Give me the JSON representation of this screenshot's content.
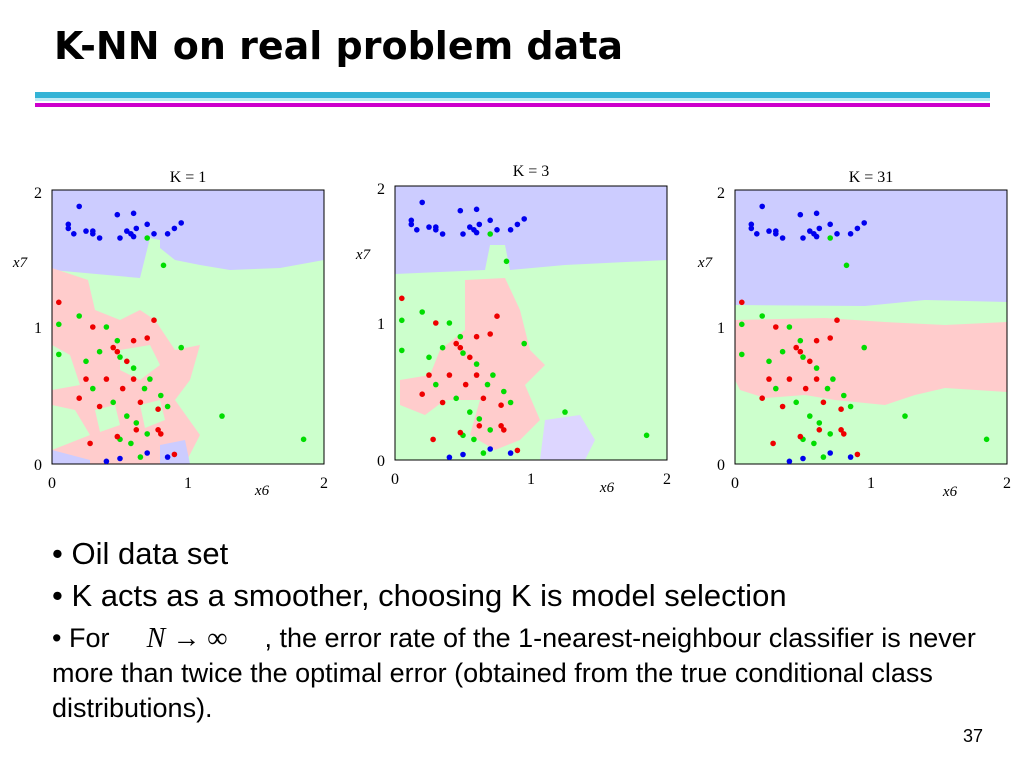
{
  "slide": {
    "title": "K-NN on real problem data",
    "page_number": "37",
    "bullets": {
      "b1": "• Oil data set",
      "b2": "• K acts as a smoother, choosing K is model selection",
      "b3_prefix": "•  For ",
      "b3_math": "N → ∞",
      "b3_suffix": " , the error rate of the 1-nearest-neighbour classifier is never more than twice the optimal error (obtained from the true conditional class distributions)."
    },
    "colors": {
      "rule_cyan": "#33b3d6",
      "rule_magenta": "#cc00cc",
      "region_blue": "#ccccff",
      "region_green": "#ccffcc",
      "region_red": "#ffcccc",
      "point_blue": "#0000ee",
      "point_green": "#00dd00",
      "point_red": "#ee0000"
    }
  },
  "chart_data": [
    {
      "type": "scatter",
      "title": "K = 1",
      "xlabel": "x6",
      "ylabel": "x7",
      "xlim": [
        0,
        2
      ],
      "ylim": [
        0,
        2
      ],
      "xticks": [
        "0",
        "1",
        "2"
      ],
      "yticks": [
        "0",
        "1",
        "2"
      ],
      "series": [
        {
          "color": "blue",
          "points": [
            [
              0.12,
              1.72
            ],
            [
              0.2,
              1.88
            ],
            [
              0.16,
              1.68
            ],
            [
              0.25,
              1.7
            ],
            [
              0.3,
              1.7
            ],
            [
              0.35,
              1.65
            ],
            [
              0.48,
              1.82
            ],
            [
              0.5,
              1.65
            ],
            [
              0.55,
              1.7
            ],
            [
              0.58,
              1.68
            ],
            [
              0.6,
              1.83
            ],
            [
              0.62,
              1.72
            ],
            [
              0.7,
              1.75
            ],
            [
              0.75,
              1.68
            ],
            [
              0.85,
              1.68
            ],
            [
              0.9,
              1.72
            ],
            [
              0.95,
              1.76
            ],
            [
              0.4,
              0.02
            ],
            [
              0.5,
              0.04
            ],
            [
              0.7,
              0.08
            ],
            [
              0.85,
              0.05
            ],
            [
              0.3,
              1.68
            ],
            [
              0.12,
              1.75
            ],
            [
              0.6,
              1.66
            ]
          ]
        },
        {
          "color": "green",
          "points": [
            [
              0.7,
              1.65
            ],
            [
              0.82,
              1.45
            ],
            [
              0.05,
              1.02
            ],
            [
              0.2,
              1.08
            ],
            [
              0.4,
              1.0
            ],
            [
              0.48,
              0.9
            ],
            [
              0.05,
              0.8
            ],
            [
              0.35,
              0.82
            ],
            [
              0.5,
              0.78
            ],
            [
              0.6,
              0.7
            ],
            [
              0.72,
              0.62
            ],
            [
              0.8,
              0.5
            ],
            [
              0.3,
              0.55
            ],
            [
              0.45,
              0.45
            ],
            [
              0.55,
              0.35
            ],
            [
              0.62,
              0.3
            ],
            [
              0.7,
              0.22
            ],
            [
              0.5,
              0.18
            ],
            [
              0.58,
              0.15
            ],
            [
              0.65,
              0.05
            ],
            [
              0.85,
              0.42
            ],
            [
              0.95,
              0.85
            ],
            [
              1.25,
              0.35
            ],
            [
              1.85,
              0.18
            ],
            [
              0.25,
              0.75
            ],
            [
              0.68,
              0.55
            ]
          ]
        },
        {
          "color": "red",
          "points": [
            [
              0.05,
              1.18
            ],
            [
              0.3,
              1.0
            ],
            [
              0.48,
              0.82
            ],
            [
              0.6,
              0.9
            ],
            [
              0.7,
              0.92
            ],
            [
              0.75,
              1.05
            ],
            [
              0.55,
              0.75
            ],
            [
              0.4,
              0.62
            ],
            [
              0.25,
              0.62
            ],
            [
              0.2,
              0.48
            ],
            [
              0.35,
              0.42
            ],
            [
              0.52,
              0.55
            ],
            [
              0.65,
              0.45
            ],
            [
              0.78,
              0.4
            ],
            [
              0.78,
              0.25
            ],
            [
              0.62,
              0.25
            ],
            [
              0.48,
              0.2
            ],
            [
              0.28,
              0.15
            ],
            [
              0.9,
              0.07
            ],
            [
              0.8,
              0.22
            ],
            [
              0.6,
              0.62
            ],
            [
              0.45,
              0.85
            ]
          ]
        }
      ]
    },
    {
      "type": "scatter",
      "title": "K = 3",
      "xlabel": "x6",
      "ylabel": "x7",
      "xlim": [
        0,
        2
      ],
      "ylim": [
        0,
        2
      ],
      "xticks": [
        "0",
        "1",
        "2"
      ],
      "yticks": [
        "0",
        "1",
        "2"
      ],
      "series": [
        {
          "color": "blue",
          "points": [
            [
              0.12,
              1.72
            ],
            [
              0.2,
              1.88
            ],
            [
              0.16,
              1.68
            ],
            [
              0.25,
              1.7
            ],
            [
              0.3,
              1.7
            ],
            [
              0.35,
              1.65
            ],
            [
              0.48,
              1.82
            ],
            [
              0.5,
              1.65
            ],
            [
              0.55,
              1.7
            ],
            [
              0.58,
              1.68
            ],
            [
              0.6,
              1.83
            ],
            [
              0.62,
              1.72
            ],
            [
              0.7,
              1.75
            ],
            [
              0.75,
              1.68
            ],
            [
              0.85,
              1.68
            ],
            [
              0.9,
              1.72
            ],
            [
              0.95,
              1.76
            ],
            [
              0.4,
              0.02
            ],
            [
              0.5,
              0.04
            ],
            [
              0.7,
              0.08
            ],
            [
              0.85,
              0.05
            ],
            [
              0.3,
              1.68
            ],
            [
              0.12,
              1.75
            ],
            [
              0.6,
              1.66
            ]
          ]
        },
        {
          "color": "green",
          "points": [
            [
              0.7,
              1.65
            ],
            [
              0.82,
              1.45
            ],
            [
              0.05,
              1.02
            ],
            [
              0.2,
              1.08
            ],
            [
              0.4,
              1.0
            ],
            [
              0.48,
              0.9
            ],
            [
              0.05,
              0.8
            ],
            [
              0.35,
              0.82
            ],
            [
              0.5,
              0.78
            ],
            [
              0.6,
              0.7
            ],
            [
              0.72,
              0.62
            ],
            [
              0.8,
              0.5
            ],
            [
              0.3,
              0.55
            ],
            [
              0.45,
              0.45
            ],
            [
              0.55,
              0.35
            ],
            [
              0.62,
              0.3
            ],
            [
              0.7,
              0.22
            ],
            [
              0.5,
              0.18
            ],
            [
              0.58,
              0.15
            ],
            [
              0.65,
              0.05
            ],
            [
              0.85,
              0.42
            ],
            [
              0.95,
              0.85
            ],
            [
              1.25,
              0.35
            ],
            [
              1.85,
              0.18
            ],
            [
              0.25,
              0.75
            ],
            [
              0.68,
              0.55
            ]
          ]
        },
        {
          "color": "red",
          "points": [
            [
              0.05,
              1.18
            ],
            [
              0.3,
              1.0
            ],
            [
              0.48,
              0.82
            ],
            [
              0.6,
              0.9
            ],
            [
              0.7,
              0.92
            ],
            [
              0.75,
              1.05
            ],
            [
              0.55,
              0.75
            ],
            [
              0.4,
              0.62
            ],
            [
              0.25,
              0.62
            ],
            [
              0.2,
              0.48
            ],
            [
              0.35,
              0.42
            ],
            [
              0.52,
              0.55
            ],
            [
              0.65,
              0.45
            ],
            [
              0.78,
              0.4
            ],
            [
              0.78,
              0.25
            ],
            [
              0.62,
              0.25
            ],
            [
              0.48,
              0.2
            ],
            [
              0.28,
              0.15
            ],
            [
              0.9,
              0.07
            ],
            [
              0.8,
              0.22
            ],
            [
              0.6,
              0.62
            ],
            [
              0.45,
              0.85
            ]
          ]
        }
      ]
    },
    {
      "type": "scatter",
      "title": "K = 31",
      "xlabel": "x6",
      "ylabel": "x7",
      "xlim": [
        0,
        2
      ],
      "ylim": [
        0,
        2
      ],
      "xticks": [
        "0",
        "1",
        "2"
      ],
      "yticks": [
        "0",
        "1",
        "2"
      ],
      "series": [
        {
          "color": "blue",
          "points": [
            [
              0.12,
              1.72
            ],
            [
              0.2,
              1.88
            ],
            [
              0.16,
              1.68
            ],
            [
              0.25,
              1.7
            ],
            [
              0.3,
              1.7
            ],
            [
              0.35,
              1.65
            ],
            [
              0.48,
              1.82
            ],
            [
              0.5,
              1.65
            ],
            [
              0.55,
              1.7
            ],
            [
              0.58,
              1.68
            ],
            [
              0.6,
              1.83
            ],
            [
              0.62,
              1.72
            ],
            [
              0.7,
              1.75
            ],
            [
              0.75,
              1.68
            ],
            [
              0.85,
              1.68
            ],
            [
              0.9,
              1.72
            ],
            [
              0.95,
              1.76
            ],
            [
              0.4,
              0.02
            ],
            [
              0.5,
              0.04
            ],
            [
              0.7,
              0.08
            ],
            [
              0.85,
              0.05
            ],
            [
              0.3,
              1.68
            ],
            [
              0.12,
              1.75
            ],
            [
              0.6,
              1.66
            ]
          ]
        },
        {
          "color": "green",
          "points": [
            [
              0.7,
              1.65
            ],
            [
              0.82,
              1.45
            ],
            [
              0.05,
              1.02
            ],
            [
              0.2,
              1.08
            ],
            [
              0.4,
              1.0
            ],
            [
              0.48,
              0.9
            ],
            [
              0.05,
              0.8
            ],
            [
              0.35,
              0.82
            ],
            [
              0.5,
              0.78
            ],
            [
              0.6,
              0.7
            ],
            [
              0.72,
              0.62
            ],
            [
              0.8,
              0.5
            ],
            [
              0.3,
              0.55
            ],
            [
              0.45,
              0.45
            ],
            [
              0.55,
              0.35
            ],
            [
              0.62,
              0.3
            ],
            [
              0.7,
              0.22
            ],
            [
              0.5,
              0.18
            ],
            [
              0.58,
              0.15
            ],
            [
              0.65,
              0.05
            ],
            [
              0.85,
              0.42
            ],
            [
              0.95,
              0.85
            ],
            [
              1.25,
              0.35
            ],
            [
              1.85,
              0.18
            ],
            [
              0.25,
              0.75
            ],
            [
              0.68,
              0.55
            ]
          ]
        },
        {
          "color": "red",
          "points": [
            [
              0.05,
              1.18
            ],
            [
              0.3,
              1.0
            ],
            [
              0.48,
              0.82
            ],
            [
              0.6,
              0.9
            ],
            [
              0.7,
              0.92
            ],
            [
              0.75,
              1.05
            ],
            [
              0.55,
              0.75
            ],
            [
              0.4,
              0.62
            ],
            [
              0.25,
              0.62
            ],
            [
              0.2,
              0.48
            ],
            [
              0.35,
              0.42
            ],
            [
              0.52,
              0.55
            ],
            [
              0.65,
              0.45
            ],
            [
              0.78,
              0.4
            ],
            [
              0.78,
              0.25
            ],
            [
              0.62,
              0.25
            ],
            [
              0.48,
              0.2
            ],
            [
              0.28,
              0.15
            ],
            [
              0.9,
              0.07
            ],
            [
              0.8,
              0.22
            ],
            [
              0.6,
              0.62
            ],
            [
              0.45,
              0.85
            ]
          ]
        }
      ]
    }
  ]
}
